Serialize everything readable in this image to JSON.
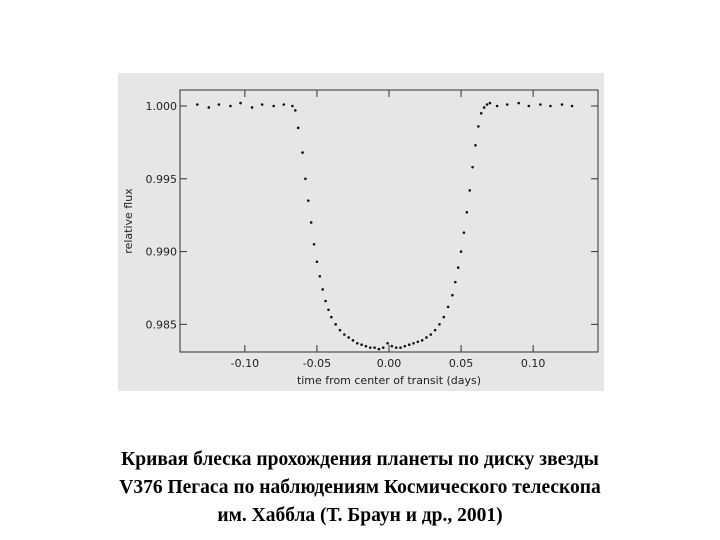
{
  "caption": {
    "line1": "Кривая блеска прохождения планеты по диску звезды",
    "line2": "V376 Пегаса по наблюдениям Космического телескопа",
    "line3": "им. Хаббла (Т. Браун и др., 2001)"
  },
  "chart_data": {
    "type": "scatter",
    "xlabel": "time from center of transit (days)",
    "ylabel": "relative flux",
    "xlim": [
      -0.145,
      0.145
    ],
    "ylim": [
      0.9831,
      1.0011
    ],
    "x_ticks": [
      -0.1,
      -0.05,
      0.0,
      0.05,
      0.1
    ],
    "x_tick_labels": [
      "-0.10",
      "-0.05",
      "0.00",
      "0.05",
      "0.10"
    ],
    "y_ticks": [
      1.0,
      0.995,
      0.99,
      0.985
    ],
    "y_tick_labels": [
      "1.000",
      "0.995",
      "0.990",
      "0.985"
    ],
    "grid": false,
    "series": [
      {
        "x": [
          -0.133,
          -0.125,
          -0.118,
          -0.11,
          -0.103,
          -0.095,
          -0.088,
          -0.08,
          -0.073,
          -0.067,
          -0.065,
          -0.063,
          -0.06,
          -0.058,
          -0.056,
          -0.054,
          -0.052,
          -0.05,
          -0.048,
          -0.046,
          -0.044,
          -0.042,
          -0.04,
          -0.037,
          -0.034,
          -0.031,
          -0.028,
          -0.025,
          -0.022,
          -0.019,
          -0.016,
          -0.013,
          -0.01,
          -0.007,
          -0.004,
          -0.001,
          0.002,
          0.005,
          0.008,
          0.011,
          0.014,
          0.017,
          0.02,
          0.023,
          0.026,
          0.029,
          0.032,
          0.035,
          0.038,
          0.041,
          0.044,
          0.046,
          0.048,
          0.05,
          0.052,
          0.054,
          0.056,
          0.058,
          0.06,
          0.062,
          0.064,
          0.066,
          0.068,
          0.07,
          0.075,
          0.082,
          0.09,
          0.097,
          0.105,
          0.112,
          0.12,
          0.127
        ],
        "y": [
          1.0001,
          0.9999,
          1.0001,
          1.0,
          1.0002,
          0.9999,
          1.0001,
          1.0,
          1.0001,
          1.0,
          0.9997,
          0.9985,
          0.9968,
          0.995,
          0.9935,
          0.992,
          0.9905,
          0.9893,
          0.9883,
          0.9874,
          0.9866,
          0.986,
          0.9855,
          0.985,
          0.9846,
          0.9843,
          0.9841,
          0.9839,
          0.9837,
          0.9836,
          0.9835,
          0.9834,
          0.9834,
          0.9833,
          0.9834,
          0.9837,
          0.9835,
          0.9834,
          0.9834,
          0.9835,
          0.9836,
          0.9837,
          0.9838,
          0.9839,
          0.9841,
          0.9843,
          0.9846,
          0.985,
          0.9855,
          0.9862,
          0.987,
          0.9879,
          0.9889,
          0.99,
          0.9913,
          0.9927,
          0.9942,
          0.9958,
          0.9973,
          0.9986,
          0.9995,
          0.9999,
          1.0001,
          1.0002,
          1.0,
          1.0001,
          1.0002,
          1.0,
          1.0001,
          1.0,
          1.0001,
          1.0
        ]
      }
    ]
  }
}
